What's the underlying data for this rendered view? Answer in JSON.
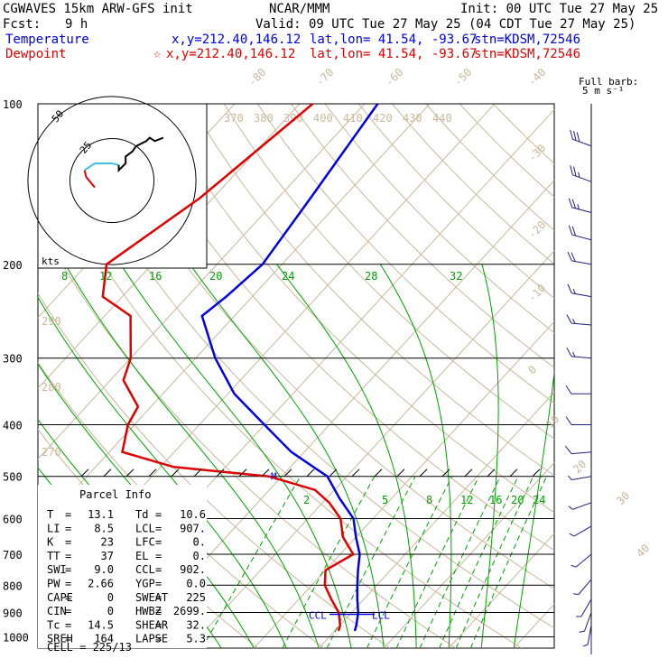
{
  "header": {
    "model": "CGWAVES 15km ARW-GFS init",
    "org": "NCAR/MMM",
    "init": "Init: 00 UTC Tue 27 May 25",
    "fcst_label": "Fcst:",
    "fcst_value": "9 h",
    "valid": "Valid: 09 UTC Tue 27 May 25 (04 CDT Tue 27 May 25)",
    "temp_label": "Temperature",
    "temp_xy": "x,y=212.40,146.12",
    "temp_latlon": "lat,lon= 41.54, -93.67",
    "temp_stn": "stn=KDSM,72546",
    "dew_label": "Dewpoint",
    "dew_star": "☆",
    "dew_xy": "x,y=212.40,146.12",
    "dew_latlon": "lat,lon= 41.54, -93.67",
    "dew_stn": "stn=KDSM,72546",
    "barb_title_1": "Full barb:",
    "barb_title_2": "5 m s⁻¹"
  },
  "colors": {
    "temperature": "#0000e0",
    "dewpoint": "#e00000",
    "isotherm": "#c8b89a",
    "mixing_ratio": "#00a000",
    "wind": "#202080",
    "hodo_upper": "#000000",
    "hodo_mid": "#40c0e0",
    "hodo_low": "#e00000"
  },
  "chart_data": {
    "type": "line",
    "title": "",
    "pressure_ticks": [
      "100",
      "200",
      "300",
      "400",
      "500",
      "600",
      "700",
      "800",
      "900",
      "1000"
    ],
    "isotherm_labels": [
      "-80",
      "-70",
      "-60",
      "-50",
      "-40",
      "-30",
      "-20",
      "-10",
      "0",
      "10",
      "20",
      "30",
      "40"
    ],
    "theta_labels_top": [
      "370",
      "380",
      "390",
      "400",
      "410",
      "420",
      "430",
      "440"
    ],
    "theta_labels_left": [
      "290",
      "280",
      "270"
    ],
    "mixing_ratio_labels_upper": [
      "8",
      "12",
      "16",
      "20",
      "24",
      "28",
      "32"
    ],
    "mixing_ratio_labels_lower": [
      "2",
      "5",
      "8",
      "12",
      "16",
      "20",
      "24"
    ],
    "series": [
      {
        "name": "Temperature",
        "pressure": [
          100,
          150,
          200,
          230,
          250,
          300,
          350,
          400,
          450,
          500,
          550,
          600,
          650,
          700,
          750,
          800,
          850,
          900,
          950,
          975
        ],
        "temperature": [
          -58,
          -55,
          -53,
          -54,
          -55,
          -47,
          -39,
          -30,
          -22,
          -13,
          -8,
          -3,
          0,
          3,
          5,
          7,
          9,
          11,
          12.5,
          13.1
        ]
      },
      {
        "name": "Dewpoint",
        "pressure": [
          100,
          150,
          200,
          230,
          250,
          300,
          330,
          370,
          400,
          450,
          480,
          500,
          530,
          560,
          600,
          650,
          700,
          750,
          800,
          850,
          900,
          950,
          975
        ],
        "dewpoint": [
          -68,
          -72,
          -77,
          -73,
          -66,
          -60,
          -58,
          -52,
          -51,
          -48,
          -38,
          -22,
          -13,
          -9,
          -5,
          -2,
          2,
          0,
          2,
          5,
          8,
          10,
          10.6
        ]
      }
    ],
    "winds": [
      {
        "p": 120,
        "dir": 290,
        "spd": 30
      },
      {
        "p": 140,
        "dir": 290,
        "spd": 28
      },
      {
        "p": 160,
        "dir": 285,
        "spd": 26
      },
      {
        "p": 180,
        "dir": 285,
        "spd": 24
      },
      {
        "p": 200,
        "dir": 280,
        "spd": 22
      },
      {
        "p": 230,
        "dir": 280,
        "spd": 18
      },
      {
        "p": 260,
        "dir": 275,
        "spd": 16
      },
      {
        "p": 300,
        "dir": 275,
        "spd": 15
      },
      {
        "p": 350,
        "dir": 270,
        "spd": 13
      },
      {
        "p": 400,
        "dir": 270,
        "spd": 12
      },
      {
        "p": 450,
        "dir": 265,
        "spd": 10
      },
      {
        "p": 500,
        "dir": 260,
        "spd": 9
      },
      {
        "p": 560,
        "dir": 250,
        "spd": 7
      },
      {
        "p": 620,
        "dir": 240,
        "spd": 6
      },
      {
        "p": 700,
        "dir": 230,
        "spd": 6
      },
      {
        "p": 780,
        "dir": 220,
        "spd": 7
      },
      {
        "p": 850,
        "dir": 210,
        "spd": 8
      },
      {
        "p": 900,
        "dir": 200,
        "spd": 7
      },
      {
        "p": 950,
        "dir": 190,
        "spd": 5
      },
      {
        "p": 990,
        "dir": 180,
        "spd": 4
      }
    ],
    "hodograph": {
      "ring_labels": [
        "25",
        "50"
      ],
      "units_label": "kts",
      "low": [
        [
          -10,
          -4
        ],
        [
          -15,
          2
        ],
        [
          -16,
          6
        ]
      ],
      "mid": [
        [
          -16,
          6
        ],
        [
          -10,
          10
        ],
        [
          0,
          10
        ],
        [
          4,
          9
        ]
      ],
      "upper": [
        [
          4,
          9
        ],
        [
          4,
          6
        ],
        [
          8,
          10
        ],
        [
          8,
          14
        ],
        [
          12,
          17
        ],
        [
          14,
          20
        ],
        [
          20,
          23
        ],
        [
          22,
          25
        ],
        [
          25,
          23
        ],
        [
          30,
          25
        ]
      ]
    },
    "level_labels": {
      "lcl_temp": "LCL",
      "lcl_dew": "CCL",
      "m_marker": "M"
    },
    "parcel": {
      "title": "Parcel Info",
      "rows": [
        [
          "T",
          "=",
          "13.1",
          "Td",
          "=",
          "10.6"
        ],
        [
          "LI",
          "=",
          "8.5",
          "LCL",
          "=",
          "907."
        ],
        [
          "K",
          "=",
          "23",
          "LFC",
          "=",
          "0."
        ],
        [
          "TT",
          "=",
          "37",
          "EL",
          "=",
          "0."
        ],
        [
          "SWI",
          "=",
          "9.0",
          "CCL",
          "=",
          "902."
        ],
        [
          "PW",
          "=",
          "2.66",
          "YGP",
          "=",
          "0.0"
        ],
        [
          "CAPE",
          "=",
          "0",
          "SWEAT",
          "=",
          "225"
        ],
        [
          "CIN",
          "=",
          "0",
          "HWBZ",
          "=",
          "2699."
        ],
        [
          "Tc",
          "=",
          "14.5",
          "SHEAR",
          "=",
          "32."
        ],
        [
          "SREH",
          "=",
          "164",
          "LAPSE",
          "=",
          "5.3"
        ]
      ],
      "cell": "CELL = 225/13"
    }
  }
}
